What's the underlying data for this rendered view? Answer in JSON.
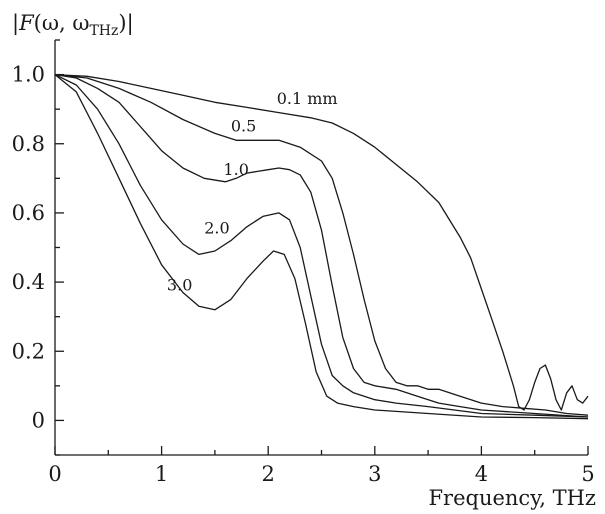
{
  "chart_data": {
    "type": "line",
    "title": "",
    "ylabel": "|F(ω, ωTHz)|",
    "ylabel_parts": {
      "bar_left": "|",
      "F": "F",
      "open": "(ω, ω",
      "sub": "THz",
      "close": ")|"
    },
    "xlabel": "Frequency, THz",
    "xlim": [
      0,
      5
    ],
    "ylim": [
      -0.1,
      1.1
    ],
    "x_ticks": [
      0,
      1,
      2,
      3,
      4,
      5
    ],
    "x_tick_labels": [
      "0",
      "1",
      "2",
      "3",
      "4",
      "5"
    ],
    "y_ticks": [
      0,
      0.2,
      0.4,
      0.6,
      0.8,
      1.0
    ],
    "y_tick_labels": [
      "0",
      "0.2",
      "0.4",
      "0.6",
      "0.8",
      "1.0"
    ],
    "grid": false,
    "series": [
      {
        "label": "0.1 mm",
        "label_pos": [
          2.08,
          0.915
        ],
        "x": [
          0,
          0.3,
          0.6,
          0.9,
          1.2,
          1.5,
          1.8,
          2.1,
          2.4,
          2.6,
          2.8,
          3.0,
          3.2,
          3.4,
          3.6,
          3.8,
          3.9,
          4.0,
          4.1,
          4.2,
          4.3,
          4.35,
          4.4,
          4.45,
          4.5,
          4.55,
          4.6,
          4.65,
          4.7,
          4.75,
          4.8,
          4.85,
          4.9,
          4.95,
          5.0
        ],
        "y": [
          1.0,
          0.995,
          0.98,
          0.96,
          0.94,
          0.92,
          0.905,
          0.89,
          0.875,
          0.86,
          0.83,
          0.79,
          0.74,
          0.69,
          0.63,
          0.53,
          0.47,
          0.38,
          0.29,
          0.2,
          0.1,
          0.04,
          0.03,
          0.06,
          0.11,
          0.15,
          0.16,
          0.12,
          0.06,
          0.03,
          0.08,
          0.1,
          0.06,
          0.05,
          0.07
        ]
      },
      {
        "label": "0.5",
        "label_pos": [
          1.65,
          0.835
        ],
        "x": [
          0,
          0.3,
          0.6,
          0.9,
          1.2,
          1.5,
          1.7,
          1.9,
          2.1,
          2.3,
          2.5,
          2.6,
          2.7,
          2.8,
          2.9,
          3.0,
          3.1,
          3.2,
          3.3,
          3.4,
          3.5,
          3.6,
          3.8,
          4.0,
          4.2,
          4.4,
          4.6,
          4.8,
          5.0
        ],
        "y": [
          1.0,
          0.99,
          0.96,
          0.92,
          0.87,
          0.83,
          0.81,
          0.81,
          0.81,
          0.79,
          0.75,
          0.7,
          0.6,
          0.48,
          0.35,
          0.23,
          0.15,
          0.11,
          0.1,
          0.1,
          0.09,
          0.09,
          0.07,
          0.05,
          0.04,
          0.035,
          0.03,
          0.02,
          0.015
        ]
      },
      {
        "label": "1.0",
        "label_pos": [
          1.58,
          0.71
        ],
        "x": [
          0,
          0.2,
          0.4,
          0.6,
          0.8,
          1.0,
          1.2,
          1.4,
          1.6,
          1.7,
          1.8,
          1.9,
          2.0,
          2.1,
          2.2,
          2.3,
          2.4,
          2.5,
          2.6,
          2.7,
          2.8,
          2.9,
          3.0,
          3.2,
          3.4,
          3.6,
          3.8,
          4.0,
          4.5,
          5.0
        ],
        "y": [
          1.0,
          0.99,
          0.96,
          0.92,
          0.85,
          0.78,
          0.73,
          0.7,
          0.69,
          0.7,
          0.715,
          0.72,
          0.725,
          0.73,
          0.725,
          0.71,
          0.66,
          0.55,
          0.39,
          0.24,
          0.15,
          0.11,
          0.1,
          0.09,
          0.07,
          0.05,
          0.04,
          0.03,
          0.02,
          0.01
        ]
      },
      {
        "label": "2.0",
        "label_pos": [
          1.4,
          0.54
        ],
        "x": [
          0,
          0.2,
          0.4,
          0.6,
          0.8,
          1.0,
          1.2,
          1.35,
          1.5,
          1.65,
          1.8,
          1.95,
          2.1,
          2.2,
          2.3,
          2.4,
          2.5,
          2.6,
          2.7,
          2.8,
          3.0,
          3.2,
          3.5,
          4.0,
          4.5,
          5.0
        ],
        "y": [
          1.0,
          0.97,
          0.9,
          0.8,
          0.68,
          0.58,
          0.51,
          0.48,
          0.49,
          0.52,
          0.56,
          0.59,
          0.6,
          0.58,
          0.5,
          0.36,
          0.22,
          0.13,
          0.1,
          0.08,
          0.06,
          0.05,
          0.04,
          0.02,
          0.015,
          0.01
        ]
      },
      {
        "label": "3.0",
        "label_pos": [
          1.05,
          0.375
        ],
        "x": [
          0,
          0.2,
          0.4,
          0.6,
          0.8,
          1.0,
          1.2,
          1.35,
          1.5,
          1.65,
          1.8,
          1.95,
          2.05,
          2.15,
          2.25,
          2.35,
          2.45,
          2.55,
          2.65,
          2.8,
          3.0,
          3.5,
          4.0,
          4.5,
          5.0
        ],
        "y": [
          1.0,
          0.95,
          0.83,
          0.7,
          0.57,
          0.45,
          0.37,
          0.33,
          0.32,
          0.35,
          0.41,
          0.46,
          0.49,
          0.48,
          0.41,
          0.28,
          0.14,
          0.07,
          0.05,
          0.04,
          0.03,
          0.02,
          0.01,
          0.008,
          0.005
        ]
      }
    ]
  }
}
